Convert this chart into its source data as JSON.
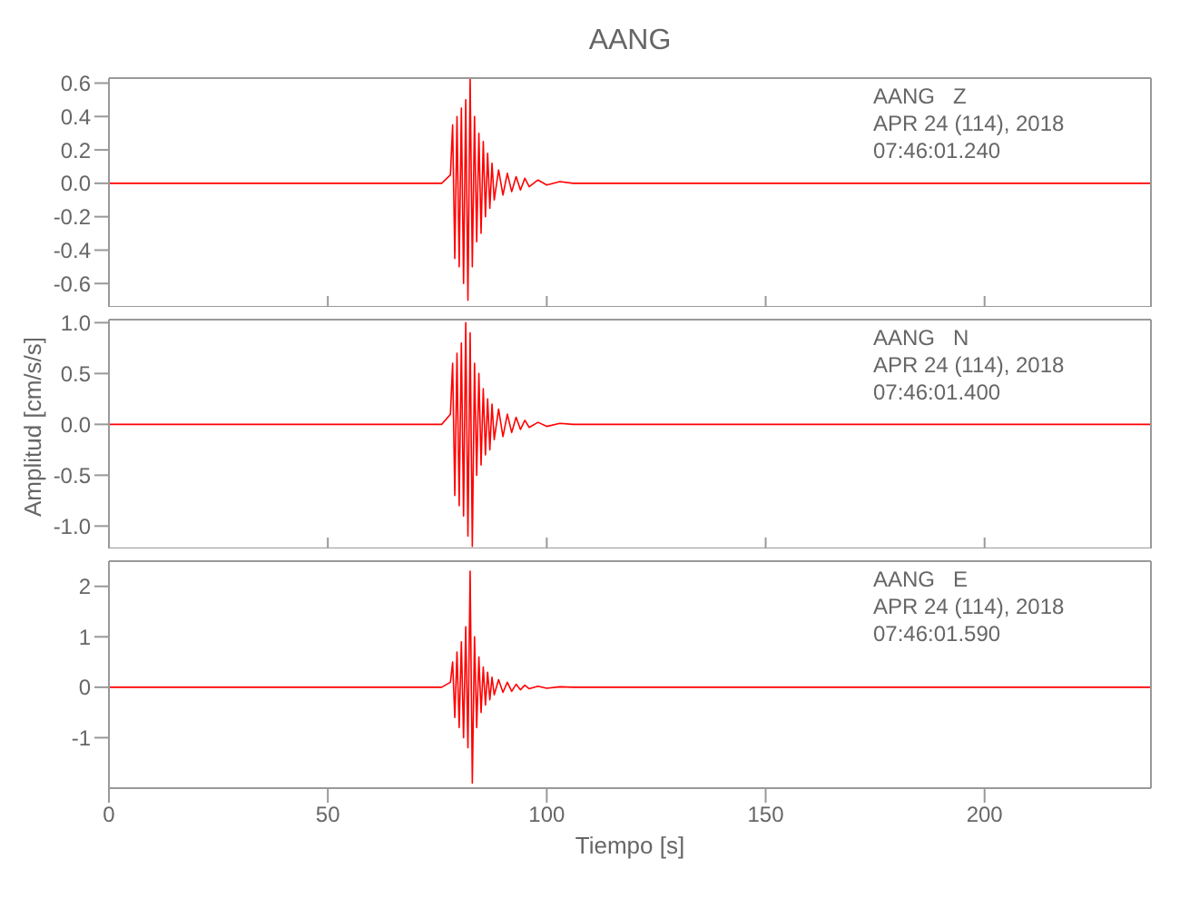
{
  "chart_data": [
    {
      "type": "line",
      "title": "AANG",
      "annotations": [
        "AANG   Z",
        "APR 24 (114), 2018",
        "07:46:01.240"
      ],
      "tick_labels": "y",
      "grid": false,
      "marker": "none",
      "x": [
        0,
        10,
        20,
        30,
        40,
        50,
        60,
        70,
        76,
        78,
        78.5,
        79,
        79.5,
        80,
        80.5,
        81,
        81.5,
        82,
        82.5,
        83,
        83.5,
        84,
        84.5,
        85,
        85.5,
        86,
        86.5,
        87,
        87.5,
        88,
        89,
        90,
        91,
        92,
        93,
        94,
        95,
        96,
        98,
        100,
        103,
        106,
        110,
        120,
        140,
        160,
        180,
        200,
        220,
        238
      ],
      "series": [
        {
          "color": "#ff0000",
          "values": [
            0,
            0,
            0,
            0,
            0,
            0,
            0,
            0,
            0,
            0.05,
            0.35,
            -0.45,
            0.4,
            -0.5,
            0.45,
            -0.6,
            0.5,
            -0.7,
            0.63,
            -0.5,
            0.4,
            -0.35,
            0.3,
            -0.3,
            0.25,
            -0.2,
            0.18,
            -0.15,
            0.12,
            -0.1,
            0.08,
            -0.07,
            0.06,
            -0.05,
            0.04,
            -0.04,
            0.03,
            -0.02,
            0.02,
            -0.01,
            0.01,
            0,
            0,
            0,
            0,
            0,
            0,
            0,
            0,
            0
          ]
        }
      ],
      "xlim": [
        0,
        238
      ],
      "xticks": [
        0,
        50,
        100,
        150,
        200
      ],
      "ylim": [
        -0.74,
        0.63
      ],
      "yticks": [
        {
          "value": -0.6,
          "label": "-0.6"
        },
        {
          "value": -0.4,
          "label": "-0.4"
        },
        {
          "value": -0.2,
          "label": "-0.2"
        },
        {
          "value": 0,
          "label": "0.0"
        },
        {
          "value": 0.2,
          "label": "0.2"
        },
        {
          "value": 0.4,
          "label": "0.4"
        },
        {
          "value": 0.6,
          "label": "0.6"
        }
      ]
    },
    {
      "type": "line",
      "ylabel": "Amplitud [cm/s/s]",
      "annotations": [
        "AANG   N",
        "APR 24 (114), 2018",
        "07:46:01.400"
      ],
      "tick_labels": "y",
      "grid": false,
      "marker": "none",
      "x": [
        0,
        10,
        20,
        30,
        40,
        50,
        60,
        70,
        76,
        78,
        78.5,
        79,
        79.5,
        80,
        80.5,
        81,
        81.5,
        82,
        82.5,
        83,
        83.5,
        84,
        84.5,
        85,
        85.5,
        86,
        86.5,
        87,
        87.5,
        88,
        89,
        90,
        91,
        92,
        93,
        94,
        95,
        96,
        98,
        100,
        103,
        106,
        110,
        120,
        140,
        160,
        180,
        200,
        220,
        238
      ],
      "series": [
        {
          "color": "#ff0000",
          "values": [
            0,
            0,
            0,
            0,
            0,
            0,
            0,
            0,
            0,
            0.1,
            0.6,
            -0.7,
            0.7,
            -0.8,
            0.8,
            -0.9,
            1.0,
            -1.1,
            0.9,
            -1.2,
            0.6,
            -0.5,
            0.5,
            -0.4,
            0.35,
            -0.3,
            0.25,
            -0.25,
            0.2,
            -0.15,
            0.15,
            -0.12,
            0.1,
            -0.08,
            0.07,
            -0.05,
            0.04,
            -0.03,
            0.02,
            -0.02,
            0.01,
            0,
            0,
            0,
            0,
            0,
            0,
            0,
            0,
            0
          ]
        }
      ],
      "xlim": [
        0,
        238
      ],
      "xticks": [
        0,
        50,
        100,
        150,
        200
      ],
      "ylim": [
        -1.22,
        1.03
      ],
      "yticks": [
        {
          "value": -1,
          "label": "-1.0"
        },
        {
          "value": -0.5,
          "label": "-0.5"
        },
        {
          "value": 0,
          "label": "0.0"
        },
        {
          "value": 0.5,
          "label": "0.5"
        },
        {
          "value": 1,
          "label": "1.0"
        }
      ]
    },
    {
      "type": "line",
      "xlabel": "Tiempo [s]",
      "annotations": [
        "AANG   E",
        "APR 24 (114), 2018",
        "07:46:01.590"
      ],
      "grid": false,
      "marker": "none",
      "x": [
        0,
        10,
        20,
        30,
        40,
        50,
        60,
        70,
        76,
        78,
        78.5,
        79,
        79.5,
        80,
        80.5,
        81,
        81.5,
        82,
        82.5,
        83,
        83.5,
        84,
        84.5,
        85,
        85.5,
        86,
        86.5,
        87,
        87.5,
        88,
        89,
        90,
        91,
        92,
        93,
        94,
        95,
        96,
        98,
        100,
        103,
        106,
        110,
        120,
        140,
        160,
        180,
        200,
        220,
        238
      ],
      "series": [
        {
          "color": "#ff0000",
          "values": [
            0,
            0,
            0,
            0,
            0,
            0,
            0,
            0,
            0,
            0.1,
            0.5,
            -0.6,
            0.7,
            -0.8,
            0.9,
            -1.0,
            1.2,
            -1.2,
            2.3,
            -1.9,
            1.0,
            -0.8,
            0.6,
            -0.5,
            0.4,
            -0.35,
            0.3,
            -0.25,
            0.2,
            -0.15,
            0.15,
            -0.1,
            0.1,
            -0.08,
            0.06,
            -0.05,
            0.04,
            -0.03,
            0.02,
            -0.02,
            0.01,
            0,
            0,
            0,
            0,
            0,
            0,
            0,
            0,
            0
          ]
        }
      ],
      "xlim": [
        0,
        238
      ],
      "xticks": [
        0,
        50,
        100,
        150,
        200
      ],
      "ylim": [
        -2.0,
        2.5
      ],
      "yticks": [
        -1,
        0,
        1,
        2
      ]
    }
  ]
}
